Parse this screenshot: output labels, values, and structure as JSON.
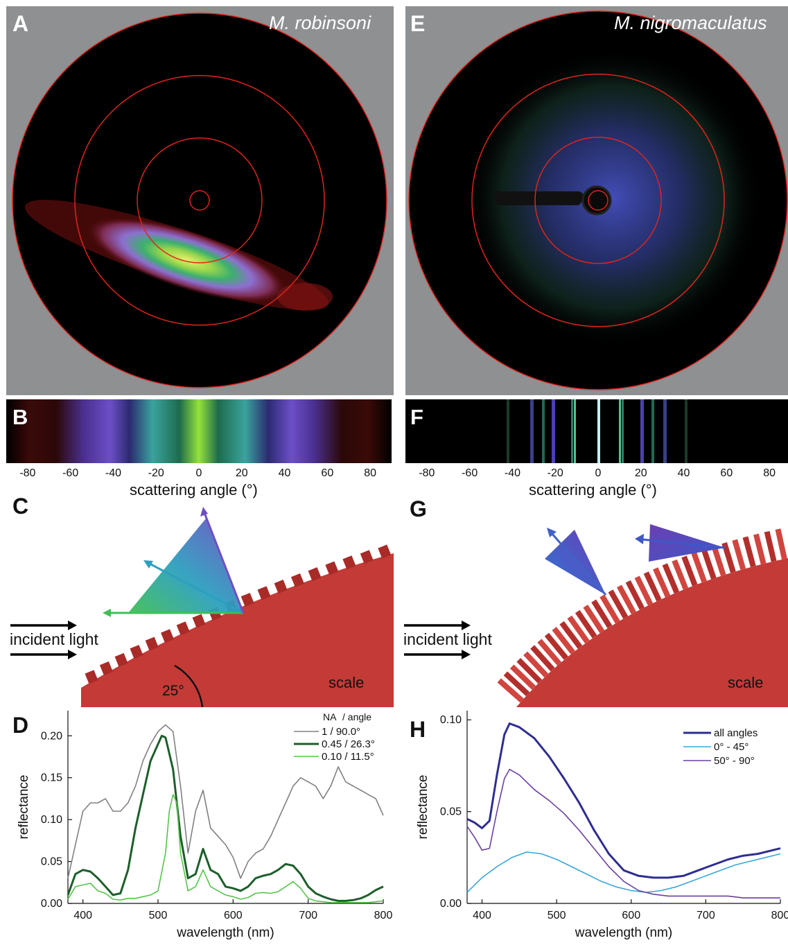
{
  "panels": {
    "A": {
      "letter": "A",
      "species": "M. robinsoni"
    },
    "B": {
      "letter": "B"
    },
    "C": {
      "letter": "C",
      "incident": "incident light",
      "scale": "scale",
      "angle": "25°"
    },
    "D": {
      "letter": "D"
    },
    "E": {
      "letter": "E",
      "species": "M. nigromaculatus"
    },
    "F": {
      "letter": "F"
    },
    "G": {
      "letter": "G",
      "incident": "incident light",
      "scale": "scale"
    },
    "H": {
      "letter": "H"
    }
  },
  "angle_axis": {
    "ticks": [
      "-80",
      "-60",
      "-40",
      "-20",
      "0",
      "20",
      "40",
      "60",
      "80"
    ],
    "label": "scattering angle (°)"
  },
  "colors": {
    "gray_bg": "#8e9092",
    "ring": "#e0241b",
    "scale_red": "#c33a37",
    "d_gray": "#808080",
    "d_dark": "#1d5e2a",
    "d_light": "#55c449",
    "h_all": "#2e2d90",
    "h_low": "#37a6dd",
    "h_high": "#6a3fa0"
  },
  "chart_data": [
    {
      "type": "line",
      "panel": "D",
      "xlabel": "wavelength (nm)",
      "ylabel": "reflectance",
      "xlim": [
        380,
        800
      ],
      "ylim": [
        0,
        0.23
      ],
      "xticks": [
        "400",
        "500",
        "600",
        "700",
        "800"
      ],
      "yticks": [
        "0.00",
        "0.05",
        "0.10",
        "0.15",
        "0.20"
      ],
      "legend_header": [
        "NA",
        "/ angle"
      ],
      "series": [
        {
          "name": "1      / 90.0°",
          "color": "#808080",
          "width": 1.6,
          "x": [
            380,
            390,
            400,
            410,
            420,
            430,
            440,
            450,
            460,
            470,
            480,
            490,
            500,
            510,
            520,
            530,
            540,
            550,
            560,
            570,
            580,
            590,
            600,
            610,
            620,
            630,
            640,
            650,
            660,
            670,
            680,
            690,
            700,
            710,
            720,
            730,
            740,
            750,
            760,
            770,
            780,
            790,
            800
          ],
          "y": [
            0.03,
            0.07,
            0.11,
            0.12,
            0.12,
            0.125,
            0.11,
            0.11,
            0.12,
            0.14,
            0.17,
            0.19,
            0.205,
            0.213,
            0.205,
            0.14,
            0.06,
            0.11,
            0.135,
            0.09,
            0.08,
            0.07,
            0.055,
            0.03,
            0.05,
            0.06,
            0.065,
            0.08,
            0.1,
            0.12,
            0.14,
            0.15,
            0.145,
            0.14,
            0.125,
            0.14,
            0.163,
            0.145,
            0.14,
            0.135,
            0.13,
            0.125,
            0.105
          ]
        },
        {
          "name": "0.45 / 26.3°",
          "color": "#1d5e2a",
          "width": 3,
          "x": [
            380,
            390,
            400,
            410,
            420,
            430,
            440,
            450,
            460,
            470,
            480,
            490,
            500,
            505,
            510,
            520,
            530,
            540,
            550,
            560,
            570,
            580,
            590,
            600,
            610,
            620,
            630,
            640,
            650,
            660,
            670,
            680,
            690,
            700,
            710,
            720,
            730,
            740,
            750,
            760,
            770,
            780,
            790,
            800
          ],
          "y": [
            0.01,
            0.035,
            0.04,
            0.038,
            0.03,
            0.02,
            0.01,
            0.012,
            0.04,
            0.09,
            0.13,
            0.17,
            0.19,
            0.2,
            0.198,
            0.16,
            0.08,
            0.03,
            0.035,
            0.065,
            0.04,
            0.035,
            0.02,
            0.018,
            0.015,
            0.02,
            0.03,
            0.033,
            0.035,
            0.04,
            0.047,
            0.045,
            0.035,
            0.02,
            0.012,
            0.008,
            0.005,
            0.003,
            0.003,
            0.004,
            0.006,
            0.01,
            0.016,
            0.02
          ]
        },
        {
          "name": "0.10 / 11.5°",
          "color": "#55c449",
          "width": 1.6,
          "x": [
            380,
            390,
            400,
            410,
            420,
            430,
            440,
            450,
            460,
            470,
            480,
            490,
            500,
            510,
            515,
            520,
            525,
            530,
            540,
            550,
            560,
            570,
            580,
            590,
            600,
            610,
            620,
            630,
            640,
            650,
            660,
            670,
            680,
            690,
            700,
            710,
            720,
            730,
            740,
            750,
            760,
            770,
            780,
            790,
            800
          ],
          "y": [
            0.005,
            0.02,
            0.022,
            0.024,
            0.015,
            0.012,
            0.005,
            0.004,
            0.006,
            0.006,
            0.008,
            0.01,
            0.015,
            0.06,
            0.11,
            0.13,
            0.12,
            0.06,
            0.015,
            0.02,
            0.04,
            0.02,
            0.015,
            0.01,
            0.008,
            0.005,
            0.007,
            0.012,
            0.013,
            0.012,
            0.014,
            0.02,
            0.026,
            0.018,
            0.006,
            0.003,
            0.002,
            0.001,
            0.001,
            0.001,
            0.001,
            0.001,
            0.001,
            0.002,
            0.003
          ]
        }
      ]
    },
    {
      "type": "line",
      "panel": "H",
      "xlabel": "wavelength (nm)",
      "ylabel": "reflectance",
      "xlim": [
        380,
        800
      ],
      "ylim": [
        0,
        0.105
      ],
      "xticks": [
        "400",
        "500",
        "600",
        "700",
        "800"
      ],
      "yticks": [
        "0.00",
        "0.05",
        "0.10"
      ],
      "series": [
        {
          "name": "all angles",
          "color": "#2e2d90",
          "width": 3,
          "x": [
            380,
            390,
            400,
            410,
            420,
            430,
            437,
            450,
            470,
            490,
            510,
            530,
            550,
            570,
            590,
            610,
            630,
            650,
            670,
            690,
            710,
            730,
            750,
            770,
            790,
            800
          ],
          "y": [
            0.046,
            0.044,
            0.041,
            0.045,
            0.07,
            0.092,
            0.098,
            0.096,
            0.09,
            0.08,
            0.068,
            0.055,
            0.04,
            0.027,
            0.018,
            0.015,
            0.014,
            0.014,
            0.015,
            0.018,
            0.021,
            0.024,
            0.026,
            0.027,
            0.029,
            0.03
          ]
        },
        {
          "name": "0° - 45°",
          "color": "#37a6dd",
          "width": 1.6,
          "x": [
            380,
            400,
            420,
            440,
            460,
            480,
            500,
            520,
            540,
            560,
            580,
            600,
            620,
            640,
            660,
            680,
            700,
            720,
            740,
            760,
            780,
            800
          ],
          "y": [
            0.006,
            0.014,
            0.02,
            0.025,
            0.028,
            0.027,
            0.024,
            0.02,
            0.016,
            0.012,
            0.009,
            0.007,
            0.006,
            0.007,
            0.009,
            0.012,
            0.015,
            0.018,
            0.021,
            0.023,
            0.025,
            0.027
          ]
        },
        {
          "name": "50° - 90°",
          "color": "#6a3fa0",
          "width": 1.6,
          "x": [
            380,
            390,
            400,
            410,
            420,
            430,
            437,
            450,
            470,
            490,
            510,
            530,
            550,
            570,
            590,
            610,
            630,
            650,
            670,
            690,
            710,
            730,
            750,
            770,
            790,
            800
          ],
          "y": [
            0.042,
            0.036,
            0.029,
            0.03,
            0.05,
            0.068,
            0.073,
            0.07,
            0.062,
            0.056,
            0.049,
            0.04,
            0.03,
            0.02,
            0.012,
            0.007,
            0.005,
            0.004,
            0.004,
            0.004,
            0.004,
            0.004,
            0.003,
            0.003,
            0.003,
            0.003
          ]
        }
      ]
    }
  ]
}
